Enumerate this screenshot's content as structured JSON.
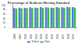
{
  "chart_data": {
    "type": "bar",
    "title": "Percentage of Students Meeting Standard",
    "categories": [
      "2008",
      "2009",
      "2010",
      "2011",
      "2012",
      "2013",
      "2014",
      "2015",
      "2016",
      "2017",
      "2018",
      "2019"
    ],
    "series": [
      {
        "name": "School",
        "color": "#4a7fd4",
        "values": [
          88,
          90,
          89,
          91,
          90,
          92,
          91,
          90,
          92,
          91,
          93,
          92
        ]
      },
      {
        "name": "State",
        "color": "#3cb44b",
        "values": [
          86,
          87,
          88,
          88,
          89,
          89,
          90,
          89,
          90,
          90,
          91,
          90
        ]
      }
    ],
    "ylim": [
      0,
      100
    ],
    "yticks": [
      0,
      20,
      40,
      60,
      80,
      100
    ],
    "grid": true,
    "legend": "bottom"
  }
}
